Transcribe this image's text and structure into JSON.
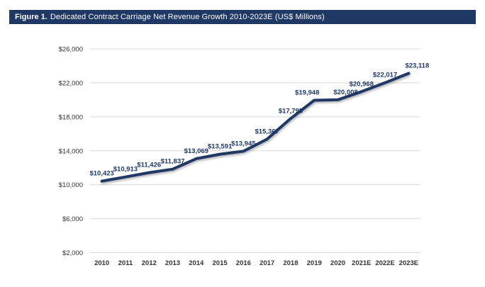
{
  "figure_header": {
    "label": "Figure 1.",
    "title": "Dedicated Contract Carriage Net Revenue Growth 2010-2023E (US$ Millions)",
    "bg_color": "#1f3864",
    "text_color": "#ffffff"
  },
  "chart_data": {
    "type": "line",
    "title": "Dedicated Contract Carriage Net Revenue Growth 2010-2023E (US$ Millions)",
    "xlabel": "",
    "ylabel": "",
    "categories": [
      "2010",
      "2011",
      "2012",
      "2013",
      "2014",
      "2015",
      "2016",
      "2017",
      "2018",
      "2019",
      "2020",
      "2021E",
      "2022E",
      "2023E"
    ],
    "series": [
      {
        "name": "Dedicated Contract Carriage Net Revenue",
        "values": [
          10423,
          10913,
          11426,
          11837,
          13069,
          13591,
          13945,
          15367,
          17795,
          19948,
          20008,
          20968,
          22017,
          23118
        ]
      }
    ],
    "data_labels": [
      "$10,423",
      "$10,913",
      "$11,426",
      "$11,837",
      "$13,069",
      "$13,591",
      "$13,945",
      "$15,367",
      "$17,795",
      "$19,948",
      "$20,008",
      "$20,968",
      "$22,017",
      "$23,118"
    ],
    "y_tick_values": [
      2000,
      6000,
      10000,
      14000,
      18000,
      22000,
      26000
    ],
    "y_tick_labels": [
      "$2,000",
      "$6,000",
      "$10,000",
      "$14,000",
      "$18,000",
      "$22,000",
      "$26,000"
    ],
    "ylim": [
      2000,
      26000
    ],
    "grid": true,
    "legend": "none",
    "line_color": "#1f3864",
    "gridline_color": "#d9d9d9",
    "axis_text_color": "#333333",
    "data_label_color": "#1f3864",
    "label_dx_overrides": {
      "9": -10,
      "10": 11,
      "13": 12
    }
  }
}
